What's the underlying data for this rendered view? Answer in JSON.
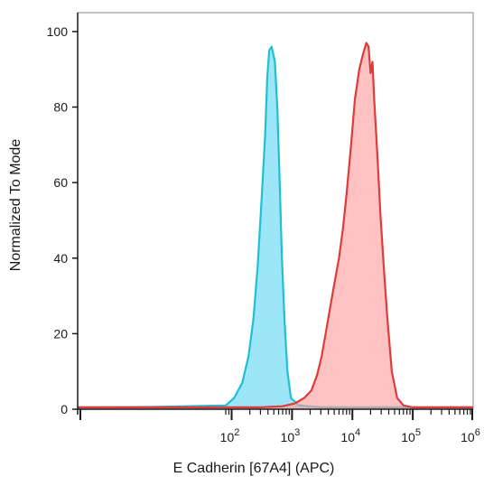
{
  "chart_data": {
    "type": "area",
    "title": "",
    "xlabel": "E Cadherin [67A4] (APC)",
    "ylabel": "Normalized To Mode",
    "x_scale": "biexponential",
    "xlim": [
      0,
      1000000
    ],
    "ylim": [
      0,
      105
    ],
    "x_ticks": [
      {
        "value": 100,
        "base": "10",
        "exp": "2"
      },
      {
        "value": 1000,
        "base": "10",
        "exp": "3"
      },
      {
        "value": 10000,
        "base": "10",
        "exp": "4"
      },
      {
        "value": 100000,
        "base": "10",
        "exp": "5"
      },
      {
        "value": 1000000,
        "base": "10",
        "exp": "6"
      }
    ],
    "y_ticks": [
      0,
      20,
      40,
      60,
      80,
      100
    ],
    "grid": false,
    "legend": "none",
    "series": [
      {
        "color": "#1fbfd6",
        "fill": "#5fd6f2",
        "points": [
          [
            0,
            0.5
          ],
          [
            40,
            0.6
          ],
          [
            80,
            1
          ],
          [
            110,
            3
          ],
          [
            150,
            7
          ],
          [
            190,
            14
          ],
          [
            230,
            24
          ],
          [
            270,
            38
          ],
          [
            320,
            58
          ],
          [
            360,
            73
          ],
          [
            390,
            88
          ],
          [
            420,
            95
          ],
          [
            460,
            96
          ],
          [
            520,
            92
          ],
          [
            570,
            80
          ],
          [
            620,
            62
          ],
          [
            680,
            40
          ],
          [
            750,
            24
          ],
          [
            840,
            10
          ],
          [
            960,
            3
          ],
          [
            1300,
            1
          ],
          [
            3000,
            0.5
          ],
          [
            10000,
            0.5
          ],
          [
            100000,
            0.5
          ],
          [
            1000000,
            0.5
          ]
        ]
      },
      {
        "color": "#de3b3b",
        "fill": "#ff9c9c",
        "points": [
          [
            0,
            0.5
          ],
          [
            300,
            0.5
          ],
          [
            700,
            0.8
          ],
          [
            1100,
            1.5
          ],
          [
            1600,
            3
          ],
          [
            2100,
            5
          ],
          [
            2600,
            9
          ],
          [
            3100,
            14
          ],
          [
            3600,
            20
          ],
          [
            4300,
            27
          ],
          [
            5000,
            33
          ],
          [
            6000,
            40
          ],
          [
            7000,
            48
          ],
          [
            8000,
            57
          ],
          [
            9500,
            70
          ],
          [
            11000,
            82
          ],
          [
            13000,
            90
          ],
          [
            15000,
            94
          ],
          [
            17000,
            97
          ],
          [
            18500,
            96
          ],
          [
            20000,
            89
          ],
          [
            21500,
            92
          ],
          [
            23000,
            82
          ],
          [
            26000,
            67
          ],
          [
            29000,
            52
          ],
          [
            33000,
            38
          ],
          [
            38000,
            24
          ],
          [
            45000,
            10
          ],
          [
            55000,
            3
          ],
          [
            70000,
            1
          ],
          [
            100000,
            0.5
          ],
          [
            1000000,
            0.5
          ]
        ]
      }
    ]
  }
}
